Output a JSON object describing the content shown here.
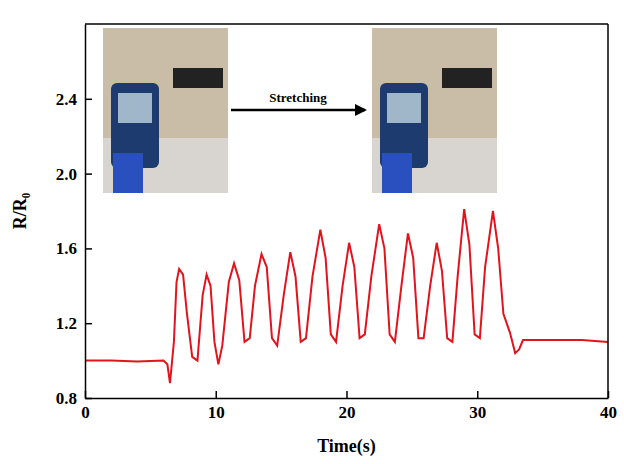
{
  "chart_data": {
    "type": "line",
    "x_label": "Time(s)",
    "y_label": "R/R₀",
    "annotation": "Stretching",
    "color": "#e0151b",
    "xlim": [
      0,
      40
    ],
    "xticks": [
      0,
      10,
      20,
      30,
      40
    ],
    "ylim": [
      0.8,
      2.8
    ],
    "yticks": [
      0.8,
      1.2,
      1.6,
      {
        "value": 2,
        "label": "2.0"
      },
      2.4
    ],
    "x": [
      0,
      2,
      4,
      6,
      6.3,
      6.5,
      6.8,
      7.0,
      7.2,
      7.5,
      7.8,
      8.2,
      8.6,
      9.0,
      9.3,
      9.6,
      9.9,
      10.2,
      10.5,
      11.0,
      11.4,
      11.8,
      12.2,
      12.6,
      13.0,
      13.5,
      13.9,
      14.3,
      14.7,
      15.2,
      15.7,
      16.1,
      16.5,
      16.9,
      17.4,
      18.0,
      18.4,
      18.8,
      19.2,
      19.7,
      20.2,
      20.6,
      21.0,
      21.4,
      21.9,
      22.5,
      22.9,
      23.3,
      23.7,
      24.2,
      24.7,
      25.1,
      25.5,
      25.9,
      26.4,
      26.9,
      27.3,
      27.7,
      28.1,
      28.5,
      29.0,
      29.4,
      29.8,
      30.2,
      30.6,
      31.2,
      31.6,
      32.0,
      32.5,
      32.9,
      33.2,
      33.5,
      35,
      38,
      40
    ],
    "values": [
      1.0,
      1.0,
      0.995,
      1.0,
      0.98,
      0.88,
      1.1,
      1.42,
      1.49,
      1.46,
      1.25,
      1.02,
      1.0,
      1.35,
      1.46,
      1.4,
      1.1,
      0.98,
      1.08,
      1.42,
      1.52,
      1.43,
      1.1,
      1.12,
      1.4,
      1.57,
      1.5,
      1.12,
      1.08,
      1.35,
      1.58,
      1.45,
      1.1,
      1.12,
      1.45,
      1.7,
      1.55,
      1.14,
      1.1,
      1.4,
      1.63,
      1.5,
      1.12,
      1.14,
      1.45,
      1.73,
      1.6,
      1.14,
      1.1,
      1.4,
      1.68,
      1.55,
      1.12,
      1.12,
      1.4,
      1.63,
      1.48,
      1.12,
      1.1,
      1.45,
      1.81,
      1.62,
      1.14,
      1.12,
      1.5,
      1.8,
      1.6,
      1.25,
      1.15,
      1.04,
      1.06,
      1.11,
      1.11,
      1.11,
      1.1
    ]
  }
}
